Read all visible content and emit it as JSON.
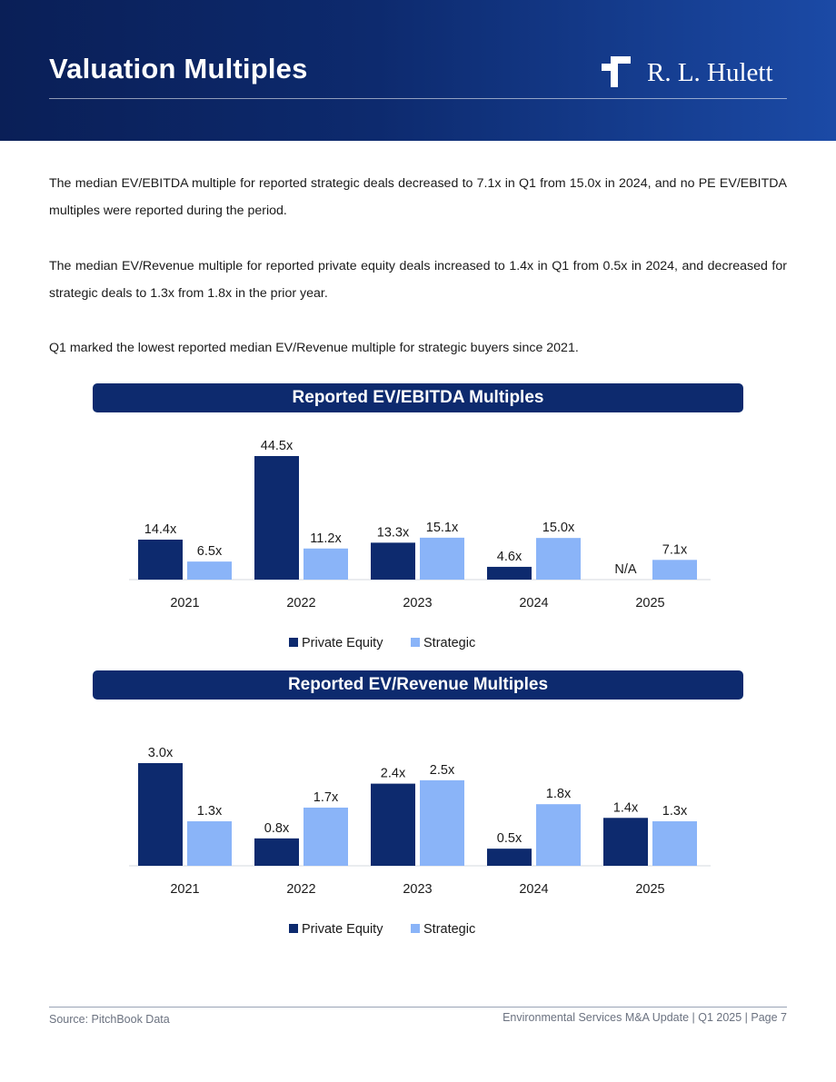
{
  "header": {
    "title": "Valuation Multiples",
    "logo_text": "R. L. Hulett"
  },
  "body": {
    "paragraphs": [
      "The median EV/EBITDA multiple for reported strategic deals decreased to 7.1x in Q1 from 15.0x in 2024, and no PE EV/EBITDA multiples were reported during the period.",
      "The median EV/Revenue multiple for reported private equity deals increased to 1.4x in Q1 from 0.5x in 2024, and decreased for strategic deals to 1.3x from 1.8x in the prior year.",
      "Q1 marked the lowest reported median EV/Revenue multiple for strategic buyers since 2021."
    ]
  },
  "colors": {
    "header_dark": "#0a1f57",
    "navy": "#0d2a6e",
    "private_equity": "#0d2a6e",
    "strategic": "#8ab4f8"
  },
  "chart_data": [
    {
      "type": "bar",
      "title": "Reported EV/EBITDA Multiples",
      "categories": [
        "2021",
        "2022",
        "2023",
        "2024",
        "2025"
      ],
      "series": [
        {
          "name": "Private Equity",
          "values": [
            14.4,
            44.5,
            13.3,
            4.6,
            null
          ],
          "labels": [
            "14.4x",
            "44.5x",
            "13.3x",
            "4.6x",
            "N/A"
          ]
        },
        {
          "name": "Strategic",
          "values": [
            6.5,
            11.2,
            15.1,
            15.0,
            7.1
          ],
          "labels": [
            "6.5x",
            "11.2x",
            "15.1x",
            "15.0x",
            "7.1x"
          ]
        }
      ],
      "legend": "bottom",
      "grid": false
    },
    {
      "type": "bar",
      "title": "Reported EV/Revenue Multiples",
      "categories": [
        "2021",
        "2022",
        "2023",
        "2024",
        "2025"
      ],
      "series": [
        {
          "name": "Private Equity",
          "values": [
            3.0,
            0.8,
            2.4,
            0.5,
            1.4
          ],
          "labels": [
            "3.0x",
            "0.8x",
            "2.4x",
            "0.5x",
            "1.4x"
          ]
        },
        {
          "name": "Strategic",
          "values": [
            1.3,
            1.7,
            2.5,
            1.8,
            1.3
          ],
          "labels": [
            "1.3x",
            "1.7x",
            "2.5x",
            "1.8x",
            "1.3x"
          ]
        }
      ],
      "legend": "bottom",
      "grid": false
    }
  ],
  "footer": {
    "source": "Source: PitchBook Data",
    "page_info": "Environmental Services M&A Update | Q1 2025 | Page 7"
  }
}
